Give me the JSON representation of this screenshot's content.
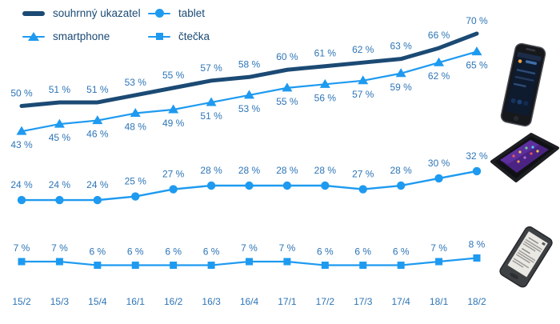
{
  "colors": {
    "summary_line": "#1b4a74",
    "device_series": "#1e9af0",
    "data_label": "#2e75b6",
    "legend_text": "#1b4a74",
    "background": "#ffffff"
  },
  "legend": {
    "position": "top-left",
    "items": [
      {
        "label": "souhrnný ukazatel",
        "marker": "thick-line",
        "color": "#1b4a74"
      },
      {
        "label": "tablet",
        "marker": "circle",
        "color": "#1e9af0"
      },
      {
        "label": "smartphone",
        "marker": "triangle",
        "color": "#1e9af0"
      },
      {
        "label": "čtečka",
        "marker": "square",
        "color": "#1e9af0"
      }
    ]
  },
  "chart_data": {
    "type": "line",
    "title": "",
    "xlabel": "",
    "ylabel": "",
    "unit": "%",
    "grid": false,
    "axes_visible": false,
    "legend_position": "top-left",
    "ylim": [
      0,
      100
    ],
    "categories": [
      "15/2",
      "15/3",
      "15/4",
      "16/1",
      "16/2",
      "16/3",
      "16/4",
      "17/1",
      "17/2",
      "17/3",
      "17/4",
      "18/1",
      "18/2"
    ],
    "series": [
      {
        "name": "souhrnný ukazatel",
        "slug": "souhrnny-ukazatel",
        "marker": "none",
        "color": "#1b4a74",
        "line_width": 5,
        "label_dy": -12,
        "values": [
          50,
          51,
          51,
          53,
          55,
          57,
          58,
          60,
          61,
          62,
          63,
          66,
          70
        ]
      },
      {
        "name": "smartphone",
        "slug": "smartphone",
        "marker": "triangle",
        "color": "#1e9af0",
        "line_width": 2.2,
        "label_dy": 21,
        "values": [
          43,
          45,
          46,
          48,
          49,
          51,
          53,
          55,
          56,
          57,
          59,
          62,
          65
        ]
      },
      {
        "name": "tablet",
        "slug": "tablet",
        "marker": "circle",
        "color": "#1e9af0",
        "line_width": 2.4,
        "label_dy": -15,
        "values": [
          24,
          24,
          24,
          25,
          27,
          28,
          28,
          28,
          28,
          27,
          28,
          30,
          32
        ]
      },
      {
        "name": "čtečka",
        "slug": "ctecka",
        "marker": "square",
        "color": "#1e9af0",
        "line_width": 2.2,
        "label_dy": -13,
        "values": [
          7,
          7,
          6,
          6,
          6,
          6,
          7,
          7,
          6,
          6,
          6,
          7,
          8
        ]
      }
    ],
    "data_label_format": "{value} %"
  },
  "decorations": {
    "devices": [
      "smartphone-photo",
      "tablet-photo",
      "ereader-photo"
    ]
  }
}
